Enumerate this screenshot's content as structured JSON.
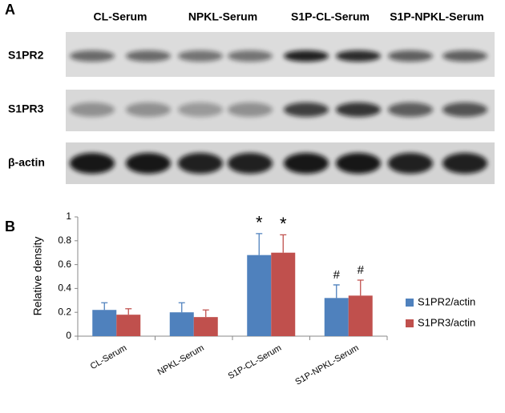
{
  "panel_a": {
    "label": "A",
    "lanes": [
      "CL-Serum",
      "NPKL-Serum",
      "S1P-CL-Serum",
      "S1P-NPKL-Serum"
    ],
    "rows": [
      "S1PR2",
      "S1PR3",
      "β-actin"
    ]
  },
  "chart_data": {
    "type": "bar",
    "panel_label": "B",
    "ylabel": "Relative density",
    "categories": [
      "CL-Serum",
      "NPKL-Serum",
      "S1P-CL-Serum",
      "S1P-NPKL-Serum"
    ],
    "series": [
      {
        "name": "S1PR2/actin",
        "color": "#4f81bd",
        "values": [
          0.22,
          0.2,
          0.68,
          0.32
        ],
        "errors": [
          0.06,
          0.08,
          0.18,
          0.11
        ],
        "annotations": [
          null,
          null,
          "*",
          "#"
        ]
      },
      {
        "name": "S1PR3/actin",
        "color": "#c0504d",
        "values": [
          0.18,
          0.16,
          0.7,
          0.34
        ],
        "errors": [
          0.05,
          0.06,
          0.15,
          0.13
        ],
        "annotations": [
          null,
          null,
          "*",
          "#"
        ]
      }
    ],
    "ylim": [
      0,
      1
    ],
    "yticks": [
      0,
      0.2,
      0.4,
      0.6,
      0.8,
      1
    ],
    "legend": "right"
  }
}
